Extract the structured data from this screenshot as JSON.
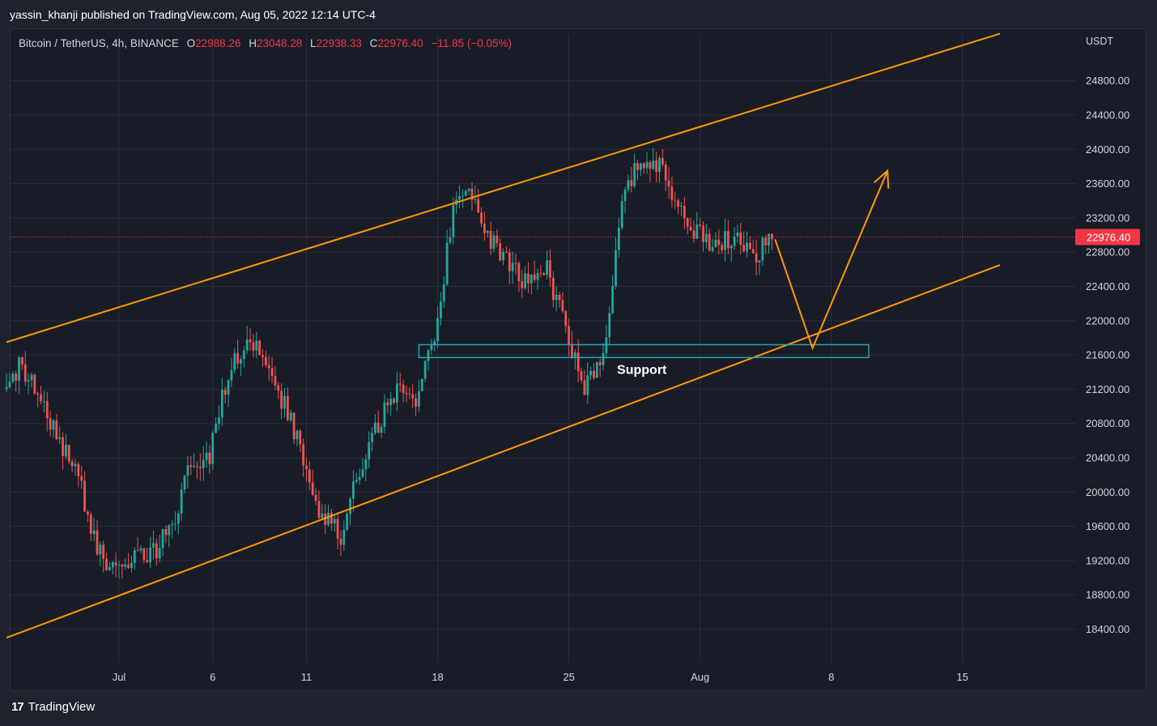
{
  "header": {
    "publisher_line": "yassin_khanji published on TradingView.com, Aug 05, 2022 12:14 UTC-4"
  },
  "legend": {
    "symbol": "Bitcoin / TetherUS, 4h, BINANCE",
    "open_label": "O",
    "open": "22988.26",
    "high_label": "H",
    "high": "23048.28",
    "low_label": "L",
    "low": "22938.33",
    "close_label": "C",
    "close": "22976.40",
    "change": "−11.85 (−0.05%)"
  },
  "footer": {
    "logo_mark": "17",
    "brand": "TradingView"
  },
  "colors": {
    "up": "#26a69a",
    "down": "#ef5350",
    "channel": "#ff9800",
    "support": "#22a5b8",
    "price_tag": "#f23645",
    "grid": "#2a2e39",
    "background": "#181c27"
  },
  "chart_data": {
    "type": "candlestick",
    "y_axis_unit": "USDT",
    "yticks": [
      18400,
      18800,
      19200,
      19600,
      20000,
      20400,
      20800,
      21200,
      21600,
      22000,
      22400,
      22800,
      23200,
      23600,
      24000,
      24400,
      24800
    ],
    "x_ticks": [
      {
        "label": "Jul",
        "date": "2022-07-01"
      },
      {
        "label": "6",
        "date": "2022-07-06"
      },
      {
        "label": "11",
        "date": "2022-07-11"
      },
      {
        "label": "18",
        "date": "2022-07-18"
      },
      {
        "label": "25",
        "date": "2022-07-25"
      },
      {
        "label": "Aug",
        "date": "2022-08-01"
      },
      {
        "label": "8",
        "date": "2022-08-08"
      },
      {
        "label": "15",
        "date": "2022-08-15"
      }
    ],
    "last_price": "22976.40",
    "price_path": [
      [
        "2022-06-25",
        21200
      ],
      [
        "2022-06-26",
        21500
      ],
      [
        "2022-06-27",
        21000
      ],
      [
        "2022-06-28",
        20600
      ],
      [
        "2022-06-29",
        20200
      ],
      [
        "2022-06-30",
        19300
      ],
      [
        "2022-07-01",
        19100
      ],
      [
        "2022-07-02",
        19200
      ],
      [
        "2022-07-03",
        19300
      ],
      [
        "2022-07-04",
        19600
      ],
      [
        "2022-07-05",
        20300
      ],
      [
        "2022-07-06",
        20400
      ],
      [
        "2022-07-07",
        21400
      ],
      [
        "2022-07-08",
        21700
      ],
      [
        "2022-07-09",
        21600
      ],
      [
        "2022-07-10",
        21000
      ],
      [
        "2022-07-11",
        20400
      ],
      [
        "2022-07-12",
        19700
      ],
      [
        "2022-07-13",
        19500
      ],
      [
        "2022-07-14",
        20300
      ],
      [
        "2022-07-15",
        20800
      ],
      [
        "2022-07-16",
        21200
      ],
      [
        "2022-07-17",
        21100
      ],
      [
        "2022-07-18",
        21800
      ],
      [
        "2022-07-19",
        23300
      ],
      [
        "2022-07-20",
        23500
      ],
      [
        "2022-07-21",
        22900
      ],
      [
        "2022-07-22",
        22700
      ],
      [
        "2022-07-23",
        22400
      ],
      [
        "2022-07-24",
        22600
      ],
      [
        "2022-07-25",
        21900
      ],
      [
        "2022-07-26",
        21200
      ],
      [
        "2022-07-27",
        21500
      ],
      [
        "2022-07-28",
        23400
      ],
      [
        "2022-07-29",
        23900
      ],
      [
        "2022-07-30",
        23800
      ],
      [
        "2022-07-31",
        23400
      ],
      [
        "2022-08-01",
        23000
      ],
      [
        "2022-08-02",
        22900
      ],
      [
        "2022-08-03",
        23000
      ],
      [
        "2022-08-04",
        22700
      ],
      [
        "2022-08-05",
        22976
      ]
    ],
    "channel": {
      "upper": [
        [
          "2022-06-25",
          21750
        ],
        [
          "2022-08-17",
          25350
        ]
      ],
      "lower": [
        [
          "2022-06-25",
          18300
        ],
        [
          "2022-08-17",
          22650
        ]
      ]
    },
    "support_zone": {
      "label": "Support",
      "from": "2022-07-17",
      "to": "2022-08-10",
      "low": 21570,
      "high": 21720
    },
    "projection": [
      [
        "2022-08-05",
        22950
      ],
      [
        "2022-08-07",
        21680
      ],
      [
        "2022-08-11",
        23750
      ]
    ]
  }
}
